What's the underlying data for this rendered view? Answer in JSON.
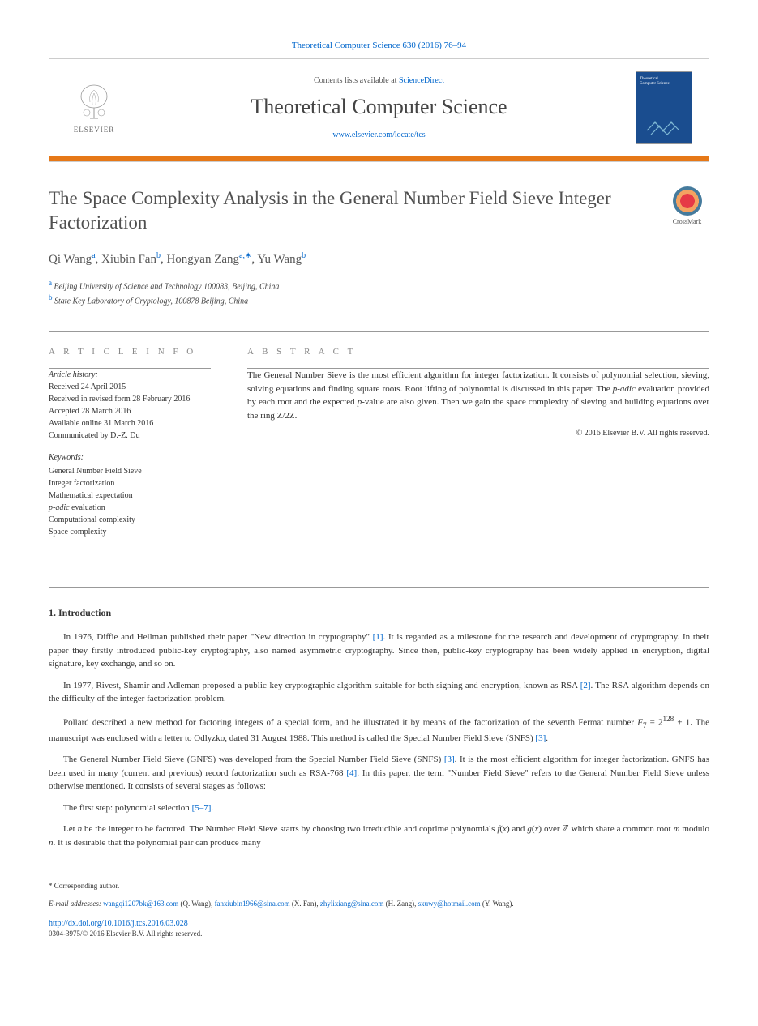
{
  "top_citation": {
    "text": "Theoretical Computer Science 630 (2016) 76–94",
    "url": "#"
  },
  "header": {
    "contents_prefix": "Contents lists available at ",
    "contents_link": "ScienceDirect",
    "journal": "Theoretical Computer Science",
    "journal_url_label": "www.elsevier.com/locate/tcs",
    "publisher_label": "ELSEVIER",
    "orange_bar_color": "#e67817",
    "cover_bg": "#1a4d8f"
  },
  "title": "The Space Complexity Analysis in the General Number Field Sieve Integer Factorization",
  "crossmark_label": "CrossMark",
  "authors_html": "Qi Wang|a|, Xiubin Fan|b|, Hongyan Zang|a,*|, Yu Wang|b|",
  "authors": [
    {
      "name": "Qi Wang",
      "sup": "a"
    },
    {
      "name": "Xiubin Fan",
      "sup": "b"
    },
    {
      "name": "Hongyan Zang",
      "sup": "a,∗"
    },
    {
      "name": "Yu Wang",
      "sup": "b"
    }
  ],
  "affiliations": [
    {
      "sup": "a",
      "text": "Beijing University of Science and Technology 100083, Beijing, China"
    },
    {
      "sup": "b",
      "text": "State Key Laboratory of Cryptology, 100878 Beijing, China"
    }
  ],
  "article_info": {
    "header": "A R T I C L E   I N F O",
    "history_label": "Article history:",
    "history": [
      "Received 24 April 2015",
      "Received in revised form 28 February 2016",
      "Accepted 28 March 2016",
      "Available online 31 March 2016",
      "Communicated by D.-Z. Du"
    ],
    "keywords_label": "Keywords:",
    "keywords": [
      "General Number Field Sieve",
      "Integer factorization",
      "Mathematical expectation",
      "p-adic evaluation",
      "Computational complexity",
      "Space complexity"
    ]
  },
  "abstract": {
    "header": "A B S T R A C T",
    "text": "The General Number Sieve is the most efficient algorithm for integer factorization. It consists of polynomial selection, sieving, solving equations and finding square roots. Root lifting of polynomial is discussed in this paper. The p-adic evaluation provided by each root and the expected p-value are also given. Then we gain the space complexity of sieving and building equations over the ring Z/2Z.",
    "copyright": "© 2016 Elsevier B.V. All rights reserved."
  },
  "section1": {
    "title": "1. Introduction",
    "paras": [
      "In 1976, Diffie and Hellman published their paper \"New direction in cryptography\" [1]. It is regarded as a milestone for the research and development of cryptography. In their paper they firstly introduced public-key cryptography, also named asymmetric cryptography. Since then, public-key cryptography has been widely applied in encryption, digital signature, key exchange, and so on.",
      "In 1977, Rivest, Shamir and Adleman proposed a public-key cryptographic algorithm suitable for both signing and encryption, known as RSA [2]. The RSA algorithm depends on the difficulty of the integer factorization problem.",
      "Pollard described a new method for factoring integers of a special form, and he illustrated it by means of the factorization of the seventh Fermat number F₇ = 2¹²⁸ + 1. The manuscript was enclosed with a letter to Odlyzko, dated 31 August 1988. This method is called the Special Number Field Sieve (SNFS) [3].",
      "The General Number Field Sieve (GNFS) was developed from the Special Number Field Sieve (SNFS) [3]. It is the most efficient algorithm for integer factorization. GNFS has been used in many (current and previous) record factorization such as RSA-768 [4]. In this paper, the term \"Number Field Sieve\" refers to the General Number Field Sieve unless otherwise mentioned. It consists of several stages as follows:",
      "The first step: polynomial selection [5–7].",
      "Let n be the integer to be factored. The Number Field Sieve starts by choosing two irreducible and coprime polynomials f(x) and g(x) over Z which share a common root m modulo n. It is desirable that the polynomial pair can produce many"
    ],
    "refs": {
      "r1": "[1]",
      "r2": "[2]",
      "r3": "[3]",
      "r4": "[4]",
      "r57": "[5–7]"
    }
  },
  "footnote": {
    "corr_label": "* Corresponding author.",
    "email_label": "E-mail addresses:",
    "emails": [
      {
        "addr": "wangqi1207bk@163.com",
        "who": "(Q. Wang)"
      },
      {
        "addr": "fanxiubin1966@sina.com",
        "who": "(X. Fan)"
      },
      {
        "addr": "zhylixiang@sina.com",
        "who": "(H. Zang)"
      },
      {
        "addr": "sxuwy@hotmail.com",
        "who": "(Y. Wang)"
      }
    ]
  },
  "doi": {
    "url": "http://dx.doi.org/10.1016/j.tcs.2016.03.028",
    "issn_line": "0304-3975/© 2016 Elsevier B.V. All rights reserved."
  },
  "colors": {
    "link": "#0066cc",
    "orange": "#e67817",
    "text": "#333333",
    "muted": "#888888"
  }
}
